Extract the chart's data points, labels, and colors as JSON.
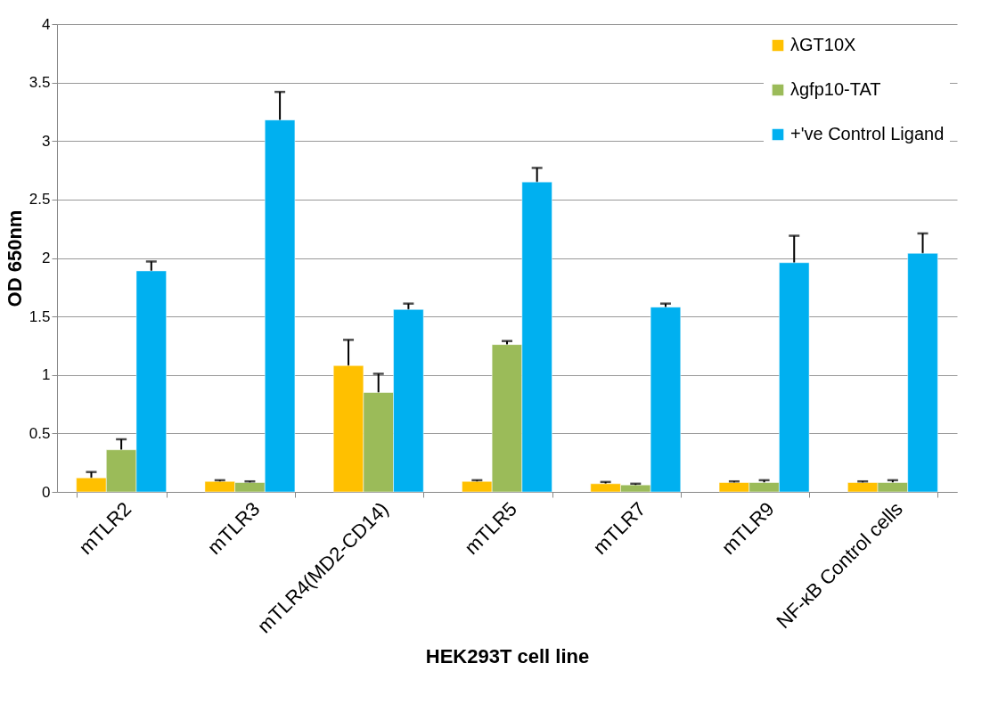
{
  "chart_data": {
    "type": "bar",
    "xlabel": "HEK293T cell line",
    "ylabel": "OD 650nm",
    "categories": [
      "mTLR2",
      "mTLR3",
      "mTLR4(MD2-CD14)",
      "mTLR5",
      "mTLR7",
      "mTLR9",
      "NF-κB Control cells"
    ],
    "series": [
      {
        "name": "λGT10X",
        "color": "#ffc000",
        "values": [
          0.12,
          0.09,
          1.08,
          0.09,
          0.07,
          0.08,
          0.08
        ],
        "errors": [
          0.05,
          0.01,
          0.22,
          0.01,
          0.015,
          0.01,
          0.01
        ]
      },
      {
        "name": "λgfp10-TAT",
        "color": "#9bbb59",
        "values": [
          0.36,
          0.08,
          0.85,
          1.26,
          0.06,
          0.08,
          0.08
        ],
        "errors": [
          0.09,
          0.01,
          0.16,
          0.03,
          0.01,
          0.02,
          0.02
        ]
      },
      {
        "name": "+'ve Control Ligand",
        "color": "#00b0f0",
        "values": [
          1.89,
          3.18,
          1.56,
          2.65,
          1.58,
          1.96,
          2.04
        ],
        "errors": [
          0.08,
          0.24,
          0.05,
          0.12,
          0.03,
          0.23,
          0.17
        ]
      }
    ],
    "ylim": [
      0,
      4
    ],
    "yticks": [
      0,
      0.5,
      1,
      1.5,
      2,
      2.5,
      3,
      3.5,
      4
    ],
    "grid": "y",
    "legend": "top right"
  }
}
